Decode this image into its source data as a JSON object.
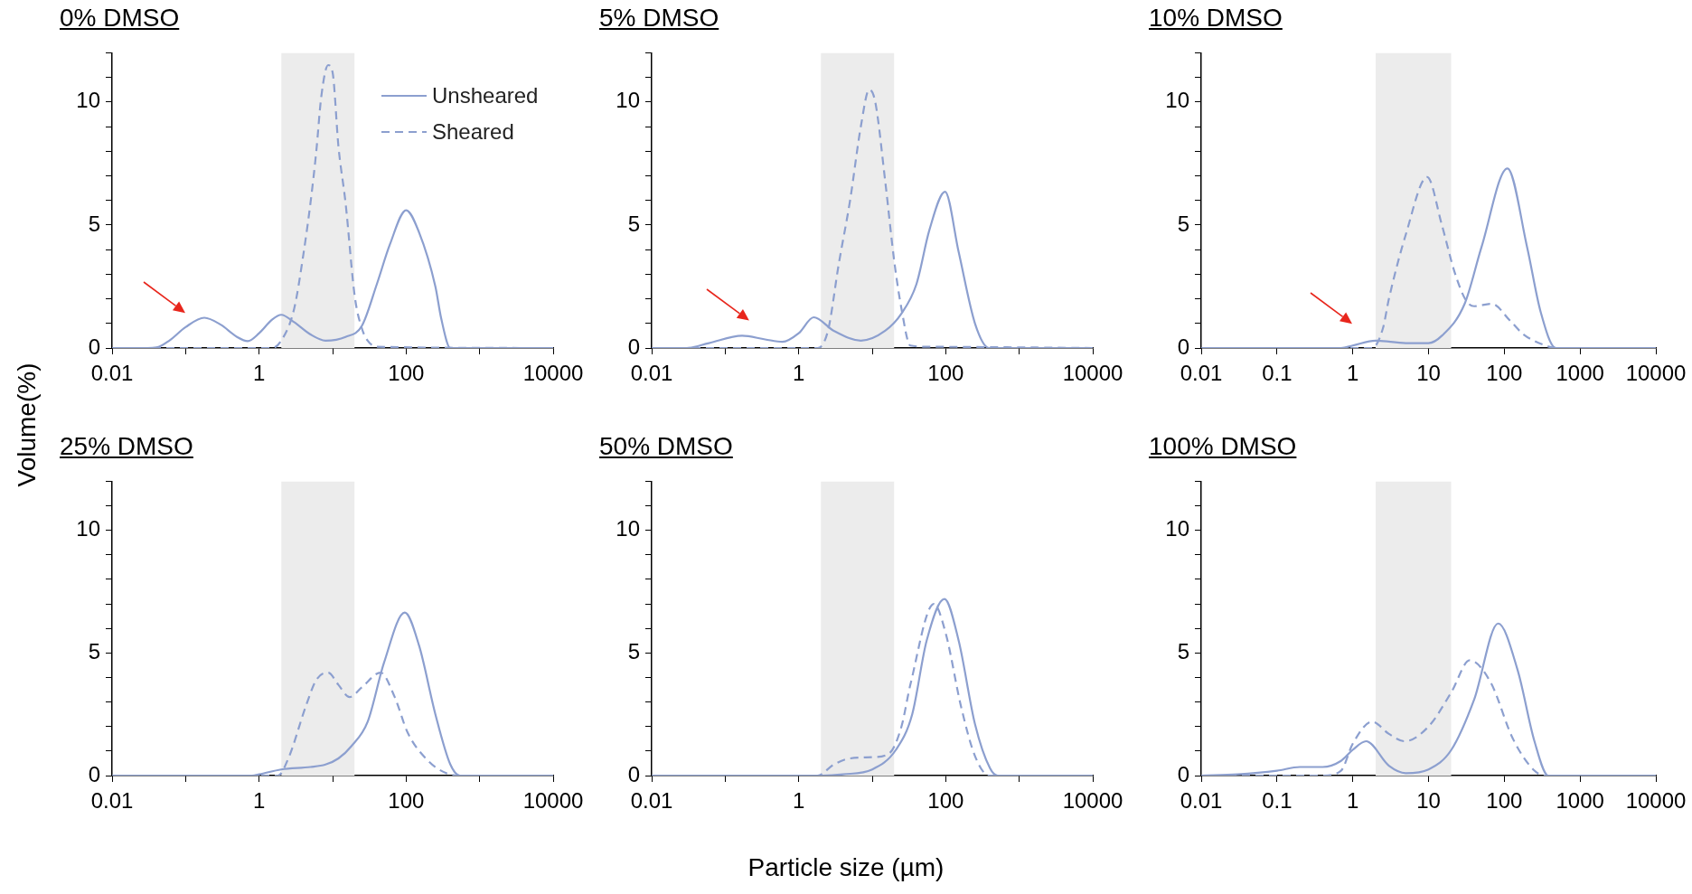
{
  "chart_data": [
    {
      "type": "line",
      "title": "0% DMSO",
      "ylabel": "Volume(%)",
      "log": "x",
      "marker": "none",
      "legend": "top right",
      "xlim": [
        0.01,
        10000
      ],
      "ylim": [
        0,
        12
      ],
      "xticks": [
        0.01,
        {
          "value": 0.1,
          "label": null
        },
        1,
        {
          "value": 10,
          "label": null
        },
        100,
        {
          "value": 1000,
          "label": null
        },
        10000
      ],
      "yticks": [
        0,
        {
          "value": 1,
          "label": null
        },
        {
          "value": 2,
          "label": null
        },
        {
          "value": 3,
          "label": null
        },
        {
          "value": 4,
          "label": null
        },
        5,
        {
          "value": 6,
          "label": null
        },
        {
          "value": 7,
          "label": null
        },
        {
          "value": 8,
          "label": null
        },
        {
          "value": 9,
          "label": null
        },
        10,
        {
          "value": 11,
          "label": null
        },
        {
          "value": 12,
          "label": null
        }
      ],
      "bands": [
        {
          "axis": "x",
          "from": 2,
          "to": 20,
          "color": "#ececec"
        }
      ],
      "series": [
        {
          "name": "Unsheared",
          "color": "#8c9fcf",
          "line_style": "solid",
          "x": [
            0.01,
            0.03,
            0.04,
            0.06,
            0.1,
            0.18,
            0.3,
            0.5,
            0.7,
            1,
            1.5,
            2,
            3,
            5,
            8,
            15,
            25,
            40,
            60,
            100,
            150,
            250,
            300,
            400,
            10000
          ],
          "values": [
            0,
            0,
            0.02,
            0.3,
            0.85,
            1.23,
            0.95,
            0.45,
            0.28,
            0.6,
            1.15,
            1.35,
            1.05,
            0.55,
            0.3,
            0.45,
            0.9,
            2.6,
            4.2,
            5.6,
            4.7,
            2.5,
            1.2,
            0,
            0
          ]
        },
        {
          "name": "Sheared",
          "color": "#8c9fcf",
          "line_style": "dashed",
          "x": [
            0.01,
            1.5,
            2,
            3,
            4,
            5,
            6,
            7,
            8.7,
            10,
            12,
            15,
            20,
            25,
            30,
            40,
            10000
          ],
          "values": [
            0,
            0,
            0.3,
            1.6,
            3.8,
            5.9,
            8,
            10.2,
            11.5,
            11.2,
            8.2,
            5.9,
            2.1,
            0.8,
            0.3,
            0.05,
            0
          ]
        }
      ]
    },
    {
      "type": "line",
      "title": "5% DMSO",
      "log": "x",
      "marker": "none",
      "xlim": [
        0.01,
        10000
      ],
      "ylim": [
        0,
        12
      ],
      "xticks": [
        0.01,
        {
          "value": 0.1,
          "label": null
        },
        1,
        {
          "value": 10,
          "label": null
        },
        100,
        {
          "value": 1000,
          "label": null
        },
        10000
      ],
      "yticks": [
        0,
        {
          "value": 1,
          "label": null
        },
        {
          "value": 2,
          "label": null
        },
        {
          "value": 3,
          "label": null
        },
        {
          "value": 4,
          "label": null
        },
        5,
        {
          "value": 6,
          "label": null
        },
        {
          "value": 7,
          "label": null
        },
        {
          "value": 8,
          "label": null
        },
        {
          "value": 9,
          "label": null
        },
        10,
        {
          "value": 11,
          "label": null
        },
        {
          "value": 12,
          "label": null
        }
      ],
      "bands": [
        {
          "axis": "x",
          "from": 2,
          "to": 20,
          "color": "#ececec"
        }
      ],
      "series": [
        {
          "color": "#8c9fcf",
          "line_style": "solid",
          "x": [
            0.01,
            0.03,
            0.06,
            0.17,
            0.35,
            0.6,
            1,
            1.6,
            3,
            7,
            15,
            25,
            40,
            60,
            98,
            150,
            250,
            390,
            10000
          ],
          "values": [
            0,
            0,
            0.2,
            0.5,
            0.35,
            0.25,
            0.6,
            1.25,
            0.7,
            0.3,
            0.7,
            1.4,
            2.6,
            4.8,
            6.35,
            3.9,
            1,
            0,
            0
          ]
        },
        {
          "color": "#8c9fcf",
          "line_style": "dashed",
          "x": [
            0.01,
            1.8,
            2.5,
            3.5,
            5,
            7,
            9.1,
            11,
            15,
            20,
            25,
            33,
            60,
            10000
          ],
          "values": [
            0,
            0,
            0.7,
            3.4,
            6,
            9,
            10.5,
            10,
            6.8,
            3.5,
            1.6,
            0.1,
            0.05,
            0
          ]
        }
      ]
    },
    {
      "type": "line",
      "title": "10% DMSO",
      "log": "x",
      "marker": "none",
      "xlim": [
        0.01,
        10000
      ],
      "ylim": [
        0,
        12
      ],
      "xticks": [
        0.01,
        0.1,
        1,
        10,
        100,
        1000,
        10000
      ],
      "yticks": [
        0,
        {
          "value": 1,
          "label": null
        },
        {
          "value": 2,
          "label": null
        },
        {
          "value": 3,
          "label": null
        },
        {
          "value": 4,
          "label": null
        },
        5,
        {
          "value": 6,
          "label": null
        },
        {
          "value": 7,
          "label": null
        },
        {
          "value": 8,
          "label": null
        },
        {
          "value": 9,
          "label": null
        },
        10,
        {
          "value": 11,
          "label": null
        },
        {
          "value": 12,
          "label": null
        }
      ],
      "bands": [
        {
          "axis": "x",
          "from": 2,
          "to": 20,
          "color": "#ececec"
        }
      ],
      "series": [
        {
          "color": "#8c9fcf",
          "line_style": "solid",
          "x": [
            0.01,
            0.7,
            1,
            2,
            5,
            10,
            15,
            30,
            50,
            110,
            200,
            300,
            480,
            10000
          ],
          "values": [
            0,
            0,
            0.1,
            0.3,
            0.2,
            0.2,
            0.5,
            1.8,
            4.1,
            7.3,
            4.1,
            1.5,
            0,
            0
          ]
        },
        {
          "color": "#8c9fcf",
          "line_style": "dashed",
          "x": [
            0.01,
            1.8,
            2.5,
            3,
            5,
            9.6,
            15,
            22,
            31,
            40,
            68,
            120,
            180,
            350,
            480,
            10000
          ],
          "values": [
            0,
            0,
            0.8,
            2,
            4.6,
            6.95,
            5,
            3.1,
            1.95,
            1.7,
            1.8,
            1.1,
            0.55,
            0.1,
            0,
            0
          ]
        }
      ]
    },
    {
      "type": "line",
      "title": "25% DMSO",
      "log": "x",
      "marker": "none",
      "xlim": [
        0.01,
        10000
      ],
      "ylim": [
        0,
        12
      ],
      "xticks": [
        0.01,
        {
          "value": 0.1,
          "label": null
        },
        1,
        {
          "value": 10,
          "label": null
        },
        100,
        {
          "value": 1000,
          "label": null
        },
        10000
      ],
      "yticks": [
        0,
        {
          "value": 1,
          "label": null
        },
        {
          "value": 2,
          "label": null
        },
        {
          "value": 3,
          "label": null
        },
        {
          "value": 4,
          "label": null
        },
        5,
        {
          "value": 6,
          "label": null
        },
        {
          "value": 7,
          "label": null
        },
        {
          "value": 8,
          "label": null
        },
        {
          "value": 9,
          "label": null
        },
        10,
        {
          "value": 11,
          "label": null
        },
        {
          "value": 12,
          "label": null
        }
      ],
      "bands": [
        {
          "axis": "x",
          "from": 2,
          "to": 20,
          "color": "#ececec"
        }
      ],
      "series": [
        {
          "color": "#8c9fcf",
          "line_style": "solid",
          "x": [
            0.01,
            0.8,
            1,
            2,
            5,
            8,
            12,
            18,
            30,
            50,
            96,
            150,
            250,
            400,
            540,
            10000
          ],
          "values": [
            0,
            0,
            0.05,
            0.25,
            0.35,
            0.45,
            0.7,
            1.2,
            2.2,
            4.6,
            6.65,
            5.3,
            2.5,
            0.45,
            0,
            0
          ]
        },
        {
          "color": "#8c9fcf",
          "line_style": "dashed",
          "x": [
            0.01,
            1.8,
            2.5,
            4.4,
            6,
            8.7,
            12,
            17,
            25,
            45,
            70,
            105,
            200,
            350,
            520,
            10000
          ],
          "values": [
            0,
            0,
            0.7,
            2.9,
            3.9,
            4.2,
            3.7,
            3.2,
            3.6,
            4.2,
            3.2,
            1.75,
            0.6,
            0.1,
            0,
            0
          ]
        }
      ]
    },
    {
      "type": "line",
      "title": "50% DMSO",
      "xlabel": "Particle size (µm)",
      "log": "x",
      "marker": "none",
      "xlim": [
        0.01,
        10000
      ],
      "ylim": [
        0,
        12
      ],
      "xticks": [
        0.01,
        {
          "value": 0.1,
          "label": null
        },
        1,
        {
          "value": 10,
          "label": null
        },
        100,
        {
          "value": 1000,
          "label": null
        },
        10000
      ],
      "yticks": [
        0,
        {
          "value": 1,
          "label": null
        },
        {
          "value": 2,
          "label": null
        },
        {
          "value": 3,
          "label": null
        },
        {
          "value": 4,
          "label": null
        },
        5,
        {
          "value": 6,
          "label": null
        },
        {
          "value": 7,
          "label": null
        },
        {
          "value": 8,
          "label": null
        },
        {
          "value": 9,
          "label": null
        },
        10,
        {
          "value": 11,
          "label": null
        },
        {
          "value": 12,
          "label": null
        }
      ],
      "bands": [
        {
          "axis": "x",
          "from": 2,
          "to": 20,
          "color": "#ececec"
        }
      ],
      "series": [
        {
          "color": "#8c9fcf",
          "line_style": "solid",
          "x": [
            0.01,
            2,
            4,
            10,
            21,
            35,
            55,
            96,
            150,
            250,
            400,
            510,
            10000
          ],
          "values": [
            0,
            0,
            0.05,
            0.25,
            1.05,
            2.5,
            5.5,
            7.2,
            5.5,
            2.1,
            0.3,
            0,
            0
          ]
        },
        {
          "color": "#8c9fcf",
          "line_style": "dashed",
          "x": [
            0.01,
            1.8,
            3,
            5,
            10,
            17,
            25,
            33,
            69,
            100,
            162,
            250,
            390,
            10000
          ],
          "values": [
            0,
            0,
            0.45,
            0.7,
            0.75,
            0.9,
            2,
            3.7,
            7,
            5.8,
            2.8,
            0.8,
            0,
            0
          ]
        }
      ]
    },
    {
      "type": "line",
      "title": "100% DMSO",
      "log": "x",
      "marker": "none",
      "xlim": [
        0.01,
        10000
      ],
      "ylim": [
        0,
        12
      ],
      "xticks": [
        0.01,
        0.1,
        1,
        10,
        100,
        1000,
        10000
      ],
      "yticks": [
        0,
        {
          "value": 1,
          "label": null
        },
        {
          "value": 2,
          "label": null
        },
        {
          "value": 3,
          "label": null
        },
        {
          "value": 4,
          "label": null
        },
        5,
        {
          "value": 6,
          "label": null
        },
        {
          "value": 7,
          "label": null
        },
        {
          "value": 8,
          "label": null
        },
        {
          "value": 9,
          "label": null
        },
        10,
        {
          "value": 11,
          "label": null
        },
        {
          "value": 12,
          "label": null
        }
      ],
      "bands": [
        {
          "axis": "x",
          "from": 2,
          "to": 20,
          "color": "#ececec"
        }
      ],
      "series": [
        {
          "color": "#8c9fcf",
          "line_style": "solid",
          "x": [
            0.01,
            0.03,
            0.1,
            0.2,
            0.4,
            0.7,
            1,
            1.5,
            3,
            5,
            10,
            20,
            40,
            83,
            150,
            250,
            380,
            10000
          ],
          "values": [
            0,
            0.05,
            0.2,
            0.35,
            0.35,
            0.6,
            1.05,
            1.4,
            0.4,
            0.1,
            0.25,
            1.05,
            3.1,
            6.2,
            4.3,
            1.4,
            0,
            0
          ]
        },
        {
          "color": "#8c9fcf",
          "line_style": "dashed",
          "x": [
            0.01,
            0.4,
            0.7,
            1,
            1.8,
            3,
            4.8,
            10,
            20,
            35,
            66,
            130,
            250,
            350,
            10000
          ],
          "values": [
            0,
            0,
            0.2,
            1.3,
            2.2,
            1.7,
            1.4,
            2,
            3.4,
            4.7,
            3.8,
            1.5,
            0.2,
            0,
            0
          ]
        }
      ]
    }
  ]
}
